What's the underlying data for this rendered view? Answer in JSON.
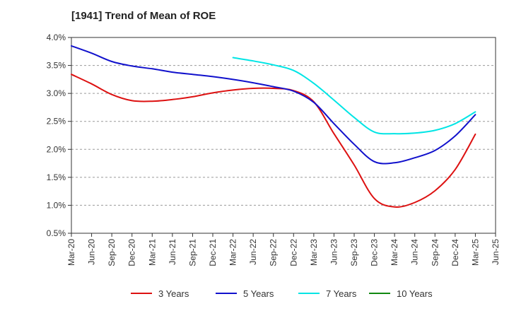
{
  "chart_data": {
    "type": "line",
    "title": "[1941]  Trend of Mean of ROE",
    "xlabel": "",
    "ylabel": "",
    "ylim": [
      0.5,
      4.0
    ],
    "y_ticks": [
      0.5,
      1.0,
      1.5,
      2.0,
      2.5,
      3.0,
      3.5,
      4.0
    ],
    "y_tick_labels": [
      "0.5%",
      "1.0%",
      "1.5%",
      "2.0%",
      "2.5%",
      "3.0%",
      "3.5%",
      "4.0%"
    ],
    "categories": [
      "Mar-20",
      "Jun-20",
      "Sep-20",
      "Dec-20",
      "Mar-21",
      "Jun-21",
      "Sep-21",
      "Dec-21",
      "Mar-22",
      "Jun-22",
      "Sep-22",
      "Dec-22",
      "Mar-23",
      "Jun-23",
      "Sep-23",
      "Dec-23",
      "Mar-24",
      "Jun-24",
      "Sep-24",
      "Dec-24",
      "Mar-25",
      "Jun-25"
    ],
    "grid": "horizontal dashed",
    "legend_position": "bottom",
    "series": [
      {
        "name": "3 Years",
        "color": "#dd1111",
        "values": [
          3.34,
          3.17,
          2.98,
          2.87,
          2.86,
          2.89,
          2.94,
          3.01,
          3.06,
          3.09,
          3.09,
          3.05,
          2.85,
          2.28,
          1.72,
          1.12,
          0.97,
          1.05,
          1.26,
          1.64,
          2.27,
          null
        ]
      },
      {
        "name": "5 Years",
        "color": "#1111cc",
        "values": [
          3.85,
          3.72,
          3.57,
          3.49,
          3.44,
          3.38,
          3.34,
          3.3,
          3.25,
          3.19,
          3.12,
          3.04,
          2.84,
          2.46,
          2.09,
          1.78,
          1.76,
          1.85,
          1.98,
          2.24,
          2.62,
          null
        ]
      },
      {
        "name": "7 Years",
        "color": "#00e5e5",
        "values": [
          null,
          null,
          null,
          null,
          null,
          null,
          null,
          null,
          3.64,
          3.58,
          3.51,
          3.41,
          3.18,
          2.88,
          2.57,
          2.31,
          2.28,
          2.29,
          2.34,
          2.46,
          2.67,
          null
        ]
      },
      {
        "name": "10 Years",
        "color": "#118811",
        "values": [
          null,
          null,
          null,
          null,
          null,
          null,
          null,
          null,
          null,
          null,
          null,
          null,
          null,
          null,
          null,
          null,
          null,
          null,
          null,
          null,
          null,
          null
        ]
      }
    ]
  }
}
